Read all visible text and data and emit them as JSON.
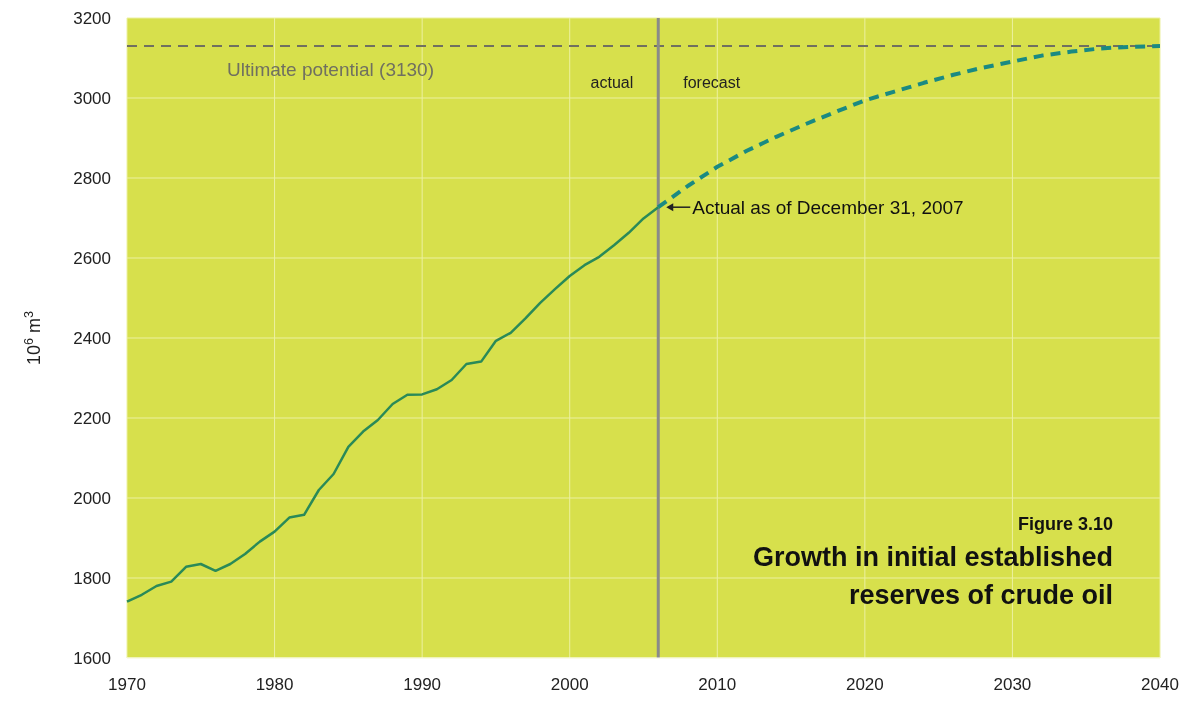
{
  "chart_data": {
    "type": "line",
    "title": "Growth in initial established reserves of crude oil",
    "subtitle": "Figure 3.10",
    "ylabel": "10$^{6}$ m$^{3}$",
    "xlim": [
      1970,
      2040
    ],
    "ylim": [
      1600,
      3200
    ],
    "xticks": [
      1970,
      1980,
      1990,
      2000,
      2010,
      2020,
      2030,
      2040
    ],
    "yticks": [
      1600,
      1800,
      2000,
      2200,
      2400,
      2600,
      2800,
      3000,
      3200
    ],
    "grid": true,
    "marker": "none",
    "series": [
      {
        "color": "#2a8a58",
        "line_style": "solid",
        "x": [
          1970,
          1971,
          1972,
          1973,
          1974,
          1975,
          1976,
          1977,
          1978,
          1979,
          1980,
          1981,
          1982,
          1983,
          1984,
          1985,
          1986,
          1987,
          1988,
          1989,
          1990,
          1991,
          1992,
          1993,
          1994,
          1995,
          1996,
          1997,
          1998,
          1999,
          2000,
          2001,
          2002,
          2003,
          2004,
          2005,
          2006
        ],
        "values": [
          1741,
          1758,
          1780,
          1791,
          1828,
          1835,
          1818,
          1835,
          1860,
          1891,
          1916,
          1951,
          1958,
          2020,
          2060,
          2128,
          2166,
          2195,
          2235,
          2258,
          2259,
          2272,
          2295,
          2335,
          2341,
          2393,
          2413,
          2449,
          2488,
          2522,
          2555,
          2582,
          2603,
          2632,
          2663,
          2699,
          2727
        ]
      },
      {
        "color": "#1a8a82",
        "line_style": "dashed",
        "x": [
          2006,
          2008,
          2010,
          2012,
          2014,
          2016,
          2018,
          2020,
          2022,
          2024,
          2026,
          2028,
          2030,
          2032,
          2034,
          2036,
          2038,
          2040
        ],
        "values": [
          2727,
          2780,
          2828,
          2868,
          2903,
          2935,
          2965,
          2994,
          3016,
          3038,
          3058,
          3076,
          3091,
          3106,
          3116,
          3124,
          3128,
          3130
        ]
      }
    ],
    "ref_lines": [
      {
        "axis": "y",
        "value": 3130,
        "label": "Ultimate potential (3130)",
        "color": "#707060",
        "line_style": "dashed"
      },
      {
        "axis": "x",
        "value": 2006,
        "color": "#8a8a8a",
        "line_style": "solid"
      }
    ],
    "annotations": [
      "actual",
      "forecast",
      {
        "text": "Actual as of December 31, 2007",
        "x": 2006,
        "y": 2727
      }
    ]
  }
}
